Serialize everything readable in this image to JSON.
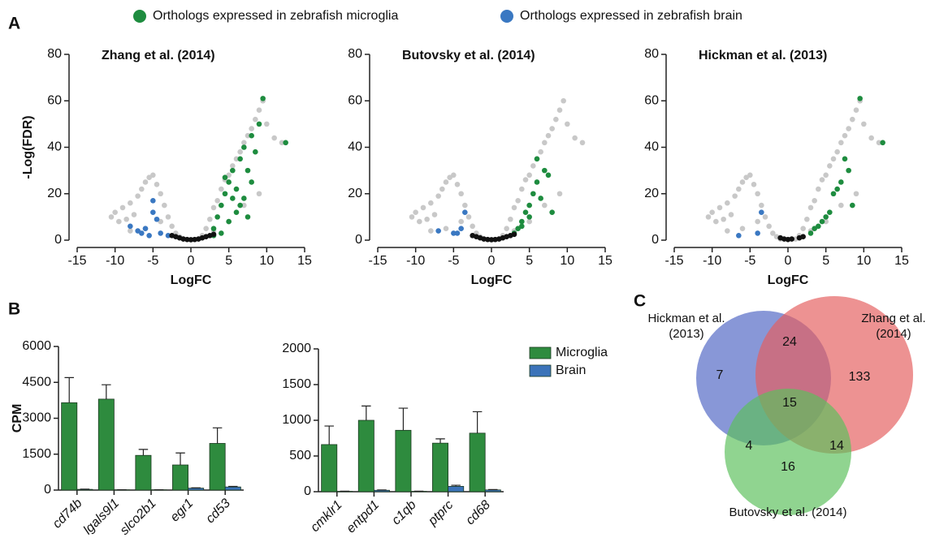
{
  "panel_labels": [
    "A",
    "B",
    "C"
  ],
  "legend": [
    {
      "name": "Orthologs expressed in zebrafish microglia",
      "color": "#1e8c3f"
    },
    {
      "name": "Orthologs expressed in zebrafish brain",
      "color": "#3a78c2"
    }
  ],
  "chart_data": [
    {
      "type": "scatter",
      "title": "Zhang et al. (2014)",
      "x_label": "LogFC",
      "y_label": "-Log(FDR)",
      "xlim": [
        -15,
        15
      ],
      "xticks": [
        -15,
        -10,
        -5,
        0,
        5,
        10,
        15
      ],
      "ylim": [
        0,
        80
      ],
      "yticks": [
        0,
        20,
        40,
        60,
        80
      ],
      "series": [
        {
          "color": "#c8c8c8",
          "x": [
            -10.5,
            -10,
            -9.5,
            -9,
            -8.5,
            -8,
            -7.5,
            -7,
            -6.5,
            -6,
            -5.5,
            -5,
            -4.5,
            -4,
            -3.5,
            -3,
            -2.5,
            -2,
            -1.5,
            -1,
            1,
            1.5,
            2,
            2.5,
            3,
            3.5,
            4,
            4.5,
            5,
            5.5,
            6,
            6.5,
            7,
            7.5,
            8,
            8.5,
            9,
            9.5,
            10,
            11,
            12,
            -6,
            -4,
            -8,
            5,
            7,
            9,
            3
          ],
          "y": [
            10,
            12,
            8,
            14,
            9,
            16,
            11,
            19,
            22,
            25,
            27,
            28,
            24,
            20,
            15,
            10,
            6,
            3,
            1.5,
            0.5,
            0.5,
            2,
            5,
            9,
            14,
            17,
            22,
            26,
            28,
            32,
            35,
            38,
            42,
            45,
            48,
            52,
            56,
            60,
            50,
            44,
            42,
            5,
            8,
            4,
            8,
            15,
            20,
            4
          ]
        },
        {
          "color": "#1e8c3f",
          "x": [
            3,
            3.5,
            4,
            4.5,
            5,
            5.5,
            6,
            6.5,
            7,
            7.5,
            8,
            8.5,
            9,
            9.5,
            12.5,
            3,
            4,
            5,
            6,
            7,
            8,
            4.5,
            6.5,
            5.5,
            7.5
          ],
          "y": [
            5,
            10,
            15,
            20,
            25,
            30,
            22,
            35,
            40,
            30,
            45,
            38,
            50,
            61,
            42,
            2,
            3,
            8,
            12,
            18,
            25,
            27,
            15,
            18,
            10
          ]
        },
        {
          "color": "#3a78c2",
          "x": [
            -8,
            -6.5,
            -5,
            -5,
            -4.5,
            -6,
            -5.5,
            -4,
            -7,
            -3
          ],
          "y": [
            6,
            3,
            12,
            17,
            9,
            5,
            2,
            3,
            4,
            2
          ]
        },
        {
          "color": "#111111",
          "x": [
            -2.5,
            -2,
            -1.5,
            -1,
            -0.5,
            0,
            0.5,
            1,
            1.5,
            2,
            2.5,
            3
          ],
          "y": [
            2,
            1.5,
            1,
            0.5,
            0.3,
            0.2,
            0.3,
            0.5,
            1,
            1.5,
            2,
            2.5
          ]
        }
      ]
    },
    {
      "type": "scatter",
      "title": "Butovsky et al. (2014)",
      "x_label": "LogFC",
      "xlim": [
        -15,
        15
      ],
      "xticks": [
        -15,
        -10,
        -5,
        0,
        5,
        10,
        15
      ],
      "ylim": [
        0,
        80
      ],
      "yticks": [
        0,
        20,
        40,
        60,
        80
      ],
      "series": [
        {
          "color": "#c8c8c8",
          "x": [
            -10.5,
            -10,
            -9.5,
            -9,
            -8.5,
            -8,
            -7.5,
            -7,
            -6.5,
            -6,
            -5.5,
            -5,
            -4.5,
            -4,
            -3.5,
            -3,
            -2.5,
            -2,
            -1.5,
            -1,
            1,
            1.5,
            2,
            2.5,
            3,
            3.5,
            4,
            4.5,
            5,
            5.5,
            6,
            6.5,
            7,
            7.5,
            8,
            8.5,
            9,
            9.5,
            10,
            11,
            12,
            -6,
            -4,
            -8,
            5,
            7,
            9,
            3
          ],
          "y": [
            10,
            12,
            8,
            14,
            9,
            16,
            11,
            19,
            22,
            25,
            27,
            28,
            24,
            20,
            15,
            10,
            6,
            3,
            1.5,
            0.5,
            0.5,
            2,
            5,
            9,
            14,
            17,
            22,
            26,
            28,
            32,
            35,
            38,
            42,
            45,
            48,
            52,
            56,
            60,
            50,
            44,
            42,
            5,
            8,
            4,
            8,
            15,
            20,
            4
          ]
        },
        {
          "color": "#1e8c3f",
          "x": [
            3,
            4,
            4.5,
            5,
            5.5,
            6,
            6.5,
            7,
            7.5,
            3.5,
            5,
            6,
            4,
            8
          ],
          "y": [
            3,
            8,
            12,
            15,
            20,
            25,
            18,
            30,
            28,
            5,
            10,
            35,
            6,
            12
          ]
        },
        {
          "color": "#3a78c2",
          "x": [
            -7,
            -5,
            -4.5,
            -4,
            -3.5
          ],
          "y": [
            4,
            3,
            3,
            5,
            12
          ]
        },
        {
          "color": "#111111",
          "x": [
            -2.5,
            -2,
            -1.5,
            -1,
            -0.5,
            0,
            0.5,
            1,
            1.5,
            2,
            2.5,
            3
          ],
          "y": [
            2,
            1.5,
            1,
            0.5,
            0.3,
            0.2,
            0.3,
            0.5,
            1,
            1.5,
            2,
            2.5
          ]
        }
      ]
    },
    {
      "type": "scatter",
      "title": "Hickman et al. (2013)",
      "x_label": "LogFC",
      "xlim": [
        -15,
        15
      ],
      "xticks": [
        -15,
        -10,
        -5,
        0,
        5,
        10,
        15
      ],
      "ylim": [
        0,
        80
      ],
      "yticks": [
        0,
        20,
        40,
        60,
        80
      ],
      "series": [
        {
          "color": "#c8c8c8",
          "x": [
            -10.5,
            -10,
            -9.5,
            -9,
            -8.5,
            -8,
            -7.5,
            -7,
            -6.5,
            -6,
            -5.5,
            -5,
            -4.5,
            -4,
            -3.5,
            -3,
            -2.5,
            -2,
            -1.5,
            -1,
            1,
            1.5,
            2,
            2.5,
            3,
            3.5,
            4,
            4.5,
            5,
            5.5,
            6,
            6.5,
            7,
            7.5,
            8,
            8.5,
            9,
            9.5,
            10,
            11,
            12,
            -6,
            -4,
            -8,
            5,
            7,
            9,
            3
          ],
          "y": [
            10,
            12,
            8,
            14,
            9,
            16,
            11,
            19,
            22,
            25,
            27,
            28,
            24,
            20,
            15,
            10,
            6,
            3,
            1.5,
            0.5,
            0.5,
            2,
            5,
            9,
            14,
            17,
            22,
            26,
            28,
            32,
            35,
            38,
            42,
            45,
            48,
            52,
            56,
            60,
            50,
            44,
            42,
            5,
            8,
            4,
            8,
            15,
            20,
            4
          ]
        },
        {
          "color": "#1e8c3f",
          "x": [
            3,
            4,
            5,
            6,
            7,
            7.5,
            8,
            9.5,
            12.5,
            3.5,
            5.5,
            6.5,
            8.5,
            4.5
          ],
          "y": [
            3,
            6,
            10,
            20,
            25,
            35,
            30,
            61,
            42,
            5,
            12,
            22,
            15,
            8
          ]
        },
        {
          "color": "#3a78c2",
          "x": [
            -6.5,
            -4,
            -3.5
          ],
          "y": [
            2,
            3,
            12
          ]
        },
        {
          "color": "#111111",
          "x": [
            -1,
            -0.5,
            0,
            0.5,
            1.5,
            2
          ],
          "y": [
            1,
            0.5,
            0.3,
            0.5,
            1,
            1.5
          ]
        }
      ]
    },
    {
      "type": "bar",
      "y_label": "CPM",
      "categories": [
        "cd74b",
        "lgals9l1",
        "slco2b1",
        "egr1",
        "cd53"
      ],
      "ylim": [
        0,
        6000
      ],
      "yticks": [
        0,
        1500,
        3000,
        4500,
        6000
      ],
      "series": [
        {
          "color": "#2e8b3e",
          "values": [
            3650,
            3800,
            1450,
            1050,
            1950
          ],
          "errors": [
            1050,
            600,
            250,
            500,
            650
          ]
        },
        {
          "color": "#3b73b9",
          "values": [
            30,
            10,
            10,
            80,
            130
          ],
          "errors": [
            10,
            5,
            5,
            15,
            25
          ]
        }
      ]
    },
    {
      "type": "bar",
      "categories": [
        "cmklr1",
        "entpd1",
        "c1qb",
        "ptprc",
        "cd68"
      ],
      "ylim": [
        0,
        2000
      ],
      "yticks": [
        0,
        500,
        1000,
        1500,
        2000
      ],
      "legend": "top-right",
      "series": [
        {
          "name": "Microglia",
          "color": "#2e8b3e",
          "values": [
            660,
            1000,
            860,
            680,
            820
          ],
          "errors": [
            260,
            200,
            310,
            60,
            300
          ]
        },
        {
          "name": "Brain",
          "color": "#3b73b9",
          "values": [
            5,
            20,
            5,
            75,
            25
          ],
          "errors": [
            3,
            5,
            3,
            15,
            5
          ]
        }
      ]
    },
    {
      "type": "venn",
      "sets": [
        {
          "name": "Hickman et al. (2013)",
          "color": "#4f66c4"
        },
        {
          "name": "Zhang et al. (2014)",
          "color": "#e45f5f"
        },
        {
          "name": "Butovsky et al. (2014)",
          "color": "#5cbf5c"
        }
      ],
      "regions": {
        "H": 7,
        "HZ": 24,
        "Z": 133,
        "HZB": 15,
        "HB": 4,
        "ZB": 14,
        "B": 16
      }
    }
  ]
}
